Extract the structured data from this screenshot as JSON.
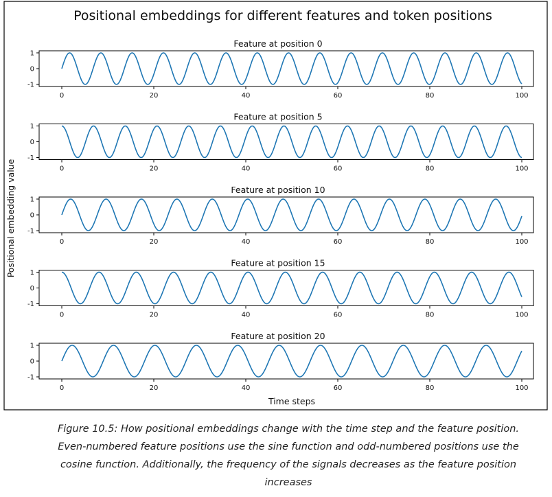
{
  "chart_data": {
    "type": "line",
    "title": "Positional embeddings for different features and token positions",
    "xlabel": "Time steps",
    "ylabel": "Positional embedding value",
    "xlim": [
      0,
      100
    ],
    "ylim": [
      -1,
      1
    ],
    "xticks": [
      0,
      20,
      40,
      60,
      80,
      100
    ],
    "yticks": [
      -1,
      0,
      1
    ],
    "line_color": "#1f77b4",
    "subplots": [
      {
        "title": "Feature at position 0",
        "function": "sin",
        "period": 6.8
      },
      {
        "title": "Feature at position 5",
        "function": "cos",
        "period": 6.9
      },
      {
        "title": "Feature at position 10",
        "function": "sin",
        "period": 7.7
      },
      {
        "title": "Feature at position 15",
        "function": "cos",
        "period": 8.1
      },
      {
        "title": "Feature at position 20",
        "function": "sin",
        "period": 9.0
      }
    ]
  },
  "caption": [
    "Figure 10.5: How positional embeddings change with the time step and the feature position.",
    "Even-numbered feature positions use the sine function and odd-numbered positions use the",
    "cosine function. Additionally, the frequency of the signals decreases as the feature position",
    "increases"
  ]
}
